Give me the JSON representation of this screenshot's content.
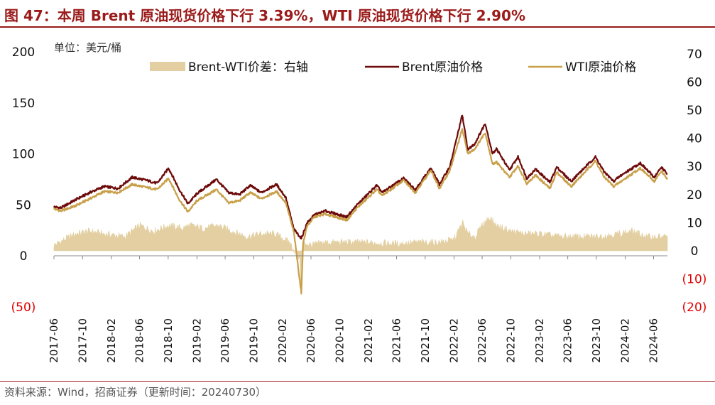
{
  "title": "图 47：本周 Brent 原油现货价格下行 3.39%，WTI 原油现货价格下行 2.90%",
  "source": "资料来源：Wind，招商证券（更新时间：20240730）",
  "chart_data": {
    "type": "line",
    "unit_label": "单位：美元/桶",
    "legend_position": "top",
    "x_start": "2017-06-01",
    "x_end": "2024-07-30",
    "x_tick_labels": [
      "2017-06",
      "2017-10",
      "2018-02",
      "2018-06",
      "2018-10",
      "2019-02",
      "2019-06",
      "2019-10",
      "2020-02",
      "2020-06",
      "2020-10",
      "2021-02",
      "2021-06",
      "2021-10",
      "2022-02",
      "2022-06",
      "2022-10",
      "2023-02",
      "2023-06",
      "2023-10",
      "2024-02",
      "2024-06"
    ],
    "y_left": {
      "min": -50,
      "max": 200,
      "ticks": [
        -50,
        0,
        50,
        100,
        150,
        200
      ],
      "tick_labels": [
        "(50)",
        "0",
        "50",
        "100",
        "150",
        "200"
      ]
    },
    "y_right": {
      "min": -20,
      "max": 70,
      "ticks": [
        -20,
        -10,
        0,
        10,
        20,
        30,
        40,
        50,
        60,
        70
      ],
      "tick_labels": [
        "(20)",
        "(10)",
        "0",
        "10",
        "20",
        "30",
        "40",
        "50",
        "60",
        "70"
      ]
    },
    "negative_label_color": "#e00000",
    "grid": false,
    "series": [
      {
        "name": "Brent-WTI价差：右轴",
        "kind": "area",
        "axis": "right",
        "color": "#e3cfa1",
        "points": [
          [
            "2017-06-01",
            2
          ],
          [
            "2017-09-01",
            6
          ],
          [
            "2017-11-01",
            7
          ],
          [
            "2018-01-01",
            6
          ],
          [
            "2018-04-01",
            5
          ],
          [
            "2018-06-01",
            9
          ],
          [
            "2018-08-01",
            7
          ],
          [
            "2018-10-01",
            9
          ],
          [
            "2018-12-01",
            8
          ],
          [
            "2019-01-01",
            9
          ],
          [
            "2019-03-01",
            8
          ],
          [
            "2019-05-01",
            9
          ],
          [
            "2019-07-01",
            7
          ],
          [
            "2019-09-01",
            5
          ],
          [
            "2019-11-01",
            6
          ],
          [
            "2020-01-01",
            6
          ],
          [
            "2020-03-01",
            3
          ],
          [
            "2020-04-15",
            -3
          ],
          [
            "2020-04-20",
            -16
          ],
          [
            "2020-04-23",
            0
          ],
          [
            "2020-05-01",
            3
          ],
          [
            "2020-06-01",
            2
          ],
          [
            "2020-08-01",
            3
          ],
          [
            "2020-10-01",
            3
          ],
          [
            "2021-01-01",
            3
          ],
          [
            "2021-06-01",
            2.5
          ],
          [
            "2021-09-01",
            3
          ],
          [
            "2021-12-01",
            3
          ],
          [
            "2022-02-01",
            4
          ],
          [
            "2022-03-10",
            10
          ],
          [
            "2022-04-01",
            6
          ],
          [
            "2022-05-01",
            5
          ],
          [
            "2022-06-01",
            9
          ],
          [
            "2022-07-01",
            12
          ],
          [
            "2022-08-01",
            9
          ],
          [
            "2022-10-01",
            7
          ],
          [
            "2022-12-01",
            6
          ],
          [
            "2023-02-01",
            6
          ],
          [
            "2023-05-01",
            5
          ],
          [
            "2023-08-01",
            5
          ],
          [
            "2023-10-01",
            5
          ],
          [
            "2024-01-01",
            6
          ],
          [
            "2024-03-01",
            7
          ],
          [
            "2024-05-01",
            5
          ],
          [
            "2024-07-30",
            5
          ]
        ]
      },
      {
        "name": "Brent原油价格",
        "kind": "line",
        "axis": "left",
        "color": "#6d0a0a",
        "points": [
          [
            "2017-06-01",
            48
          ],
          [
            "2017-07-01",
            47
          ],
          [
            "2017-09-01",
            55
          ],
          [
            "2017-11-01",
            62
          ],
          [
            "2018-01-01",
            68
          ],
          [
            "2018-03-01",
            66
          ],
          [
            "2018-05-01",
            77
          ],
          [
            "2018-07-01",
            74
          ],
          [
            "2018-08-15",
            71
          ],
          [
            "2018-10-03",
            86
          ],
          [
            "2018-11-15",
            66
          ],
          [
            "2018-12-24",
            51
          ],
          [
            "2019-02-01",
            61
          ],
          [
            "2019-04-25",
            75
          ],
          [
            "2019-06-15",
            62
          ],
          [
            "2019-08-01",
            60
          ],
          [
            "2019-09-16",
            69
          ],
          [
            "2019-11-01",
            62
          ],
          [
            "2020-01-06",
            70
          ],
          [
            "2020-02-15",
            57
          ],
          [
            "2020-03-20",
            26
          ],
          [
            "2020-04-21",
            17
          ],
          [
            "2020-05-15",
            32
          ],
          [
            "2020-06-15",
            40
          ],
          [
            "2020-08-01",
            44
          ],
          [
            "2020-11-01",
            38
          ],
          [
            "2020-12-15",
            50
          ],
          [
            "2021-03-08",
            69
          ],
          [
            "2021-04-01",
            62
          ],
          [
            "2021-07-01",
            76
          ],
          [
            "2021-08-20",
            65
          ],
          [
            "2021-10-25",
            86
          ],
          [
            "2021-12-01",
            70
          ],
          [
            "2022-01-15",
            88
          ],
          [
            "2022-03-08",
            138
          ],
          [
            "2022-04-01",
            104
          ],
          [
            "2022-05-01",
            110
          ],
          [
            "2022-06-14",
            130
          ],
          [
            "2022-07-15",
            100
          ],
          [
            "2022-08-01",
            105
          ],
          [
            "2022-09-25",
            84
          ],
          [
            "2022-11-01",
            97
          ],
          [
            "2022-12-08",
            76
          ],
          [
            "2023-01-15",
            85
          ],
          [
            "2023-03-17",
            72
          ],
          [
            "2023-04-15",
            87
          ],
          [
            "2023-06-15",
            73
          ],
          [
            "2023-07-15",
            80
          ],
          [
            "2023-09-27",
            97
          ],
          [
            "2023-11-01",
            83
          ],
          [
            "2023-12-13",
            73
          ],
          [
            "2024-01-15",
            79
          ],
          [
            "2024-04-05",
            91
          ],
          [
            "2024-06-04",
            77
          ],
          [
            "2024-07-05",
            87
          ],
          [
            "2024-07-30",
            80
          ]
        ]
      },
      {
        "name": "WTI原油价格",
        "kind": "line",
        "axis": "left",
        "color": "#c9a04a",
        "points": [
          [
            "2017-06-01",
            46
          ],
          [
            "2017-07-01",
            44
          ],
          [
            "2017-09-01",
            49
          ],
          [
            "2017-11-01",
            56
          ],
          [
            "2018-01-01",
            63
          ],
          [
            "2018-03-01",
            62
          ],
          [
            "2018-05-01",
            70
          ],
          [
            "2018-07-01",
            67
          ],
          [
            "2018-08-15",
            65
          ],
          [
            "2018-10-03",
            76
          ],
          [
            "2018-11-15",
            56
          ],
          [
            "2018-12-24",
            43
          ],
          [
            "2019-02-01",
            54
          ],
          [
            "2019-04-25",
            65
          ],
          [
            "2019-06-15",
            52
          ],
          [
            "2019-08-01",
            54
          ],
          [
            "2019-09-16",
            62
          ],
          [
            "2019-11-01",
            56
          ],
          [
            "2020-01-06",
            63
          ],
          [
            "2020-02-15",
            52
          ],
          [
            "2020-03-20",
            23
          ],
          [
            "2020-04-21",
            -37
          ],
          [
            "2020-04-28",
            12
          ],
          [
            "2020-05-15",
            29
          ],
          [
            "2020-06-15",
            38
          ],
          [
            "2020-08-01",
            41
          ],
          [
            "2020-11-01",
            35
          ],
          [
            "2020-12-15",
            47
          ],
          [
            "2021-03-08",
            65
          ],
          [
            "2021-04-01",
            59
          ],
          [
            "2021-07-01",
            74
          ],
          [
            "2021-08-20",
            62
          ],
          [
            "2021-10-25",
            84
          ],
          [
            "2021-12-01",
            66
          ],
          [
            "2022-01-15",
            84
          ],
          [
            "2022-03-08",
            124
          ],
          [
            "2022-04-01",
            100
          ],
          [
            "2022-05-01",
            105
          ],
          [
            "2022-06-14",
            121
          ],
          [
            "2022-07-15",
            90
          ],
          [
            "2022-08-01",
            92
          ],
          [
            "2022-09-25",
            77
          ],
          [
            "2022-11-01",
            88
          ],
          [
            "2022-12-08",
            71
          ],
          [
            "2023-01-15",
            79
          ],
          [
            "2023-03-17",
            66
          ],
          [
            "2023-04-15",
            82
          ],
          [
            "2023-06-15",
            68
          ],
          [
            "2023-07-15",
            75
          ],
          [
            "2023-09-27",
            93
          ],
          [
            "2023-11-01",
            78
          ],
          [
            "2023-12-13",
            68
          ],
          [
            "2024-01-15",
            73
          ],
          [
            "2024-04-05",
            86
          ],
          [
            "2024-06-04",
            73
          ],
          [
            "2024-07-05",
            83
          ],
          [
            "2024-07-30",
            75
          ]
        ]
      }
    ]
  }
}
